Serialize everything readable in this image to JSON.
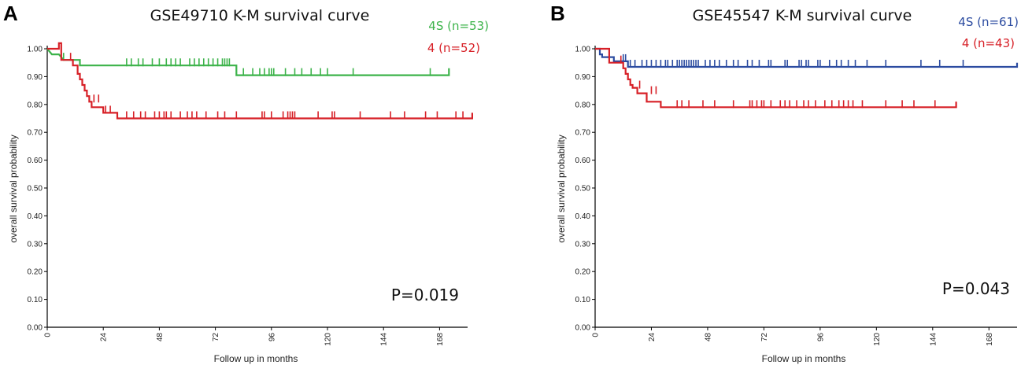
{
  "chart_data": [
    {
      "type": "line",
      "panel_label": "A",
      "title": "GSE49710 K-M survival curve",
      "xlabel": "Follow up in months",
      "ylabel": "overall survival probability",
      "xlim": [
        0,
        180
      ],
      "ylim": [
        0,
        1
      ],
      "x_ticks": [
        0,
        24,
        48,
        72,
        96,
        120,
        144,
        168
      ],
      "y_ticks": [
        0.0,
        0.1,
        0.2,
        0.3,
        0.4,
        0.5,
        0.6,
        0.7,
        0.8,
        0.9,
        1.0
      ],
      "p_value": "P=0.019",
      "series": [
        {
          "name": "4S (n=53)",
          "color": "#3cb34a",
          "steps": [
            [
              0,
              1.0
            ],
            [
              2,
              0.98
            ],
            [
              5,
              0.98
            ],
            [
              7,
              0.96
            ],
            [
              14,
              0.96
            ],
            [
              14,
              0.94
            ],
            [
              81,
              0.94
            ],
            [
              81,
              0.905
            ],
            [
              172,
              0.905
            ],
            [
              172,
              0.93
            ]
          ],
          "censor": [
            [
              7,
              0.96
            ],
            [
              34,
              0.94
            ],
            [
              36,
              0.94
            ],
            [
              39,
              0.94
            ],
            [
              41,
              0.94
            ],
            [
              45,
              0.94
            ],
            [
              48,
              0.94
            ],
            [
              51,
              0.94
            ],
            [
              53,
              0.94
            ],
            [
              55,
              0.94
            ],
            [
              57,
              0.94
            ],
            [
              61,
              0.94
            ],
            [
              63,
              0.94
            ],
            [
              65,
              0.94
            ],
            [
              67,
              0.94
            ],
            [
              69,
              0.94
            ],
            [
              71,
              0.94
            ],
            [
              73,
              0.94
            ],
            [
              75,
              0.94
            ],
            [
              76,
              0.94
            ],
            [
              77,
              0.94
            ],
            [
              78,
              0.94
            ],
            [
              84,
              0.905
            ],
            [
              88,
              0.905
            ],
            [
              91,
              0.905
            ],
            [
              93,
              0.905
            ],
            [
              95,
              0.905
            ],
            [
              96,
              0.905
            ],
            [
              97,
              0.905
            ],
            [
              102,
              0.905
            ],
            [
              106,
              0.905
            ],
            [
              109,
              0.905
            ],
            [
              113,
              0.905
            ],
            [
              117,
              0.905
            ],
            [
              120,
              0.905
            ],
            [
              131,
              0.905
            ],
            [
              164,
              0.905
            ]
          ]
        },
        {
          "name": "4 (n=52)",
          "color": "#d72027",
          "steps": [
            [
              0,
              1.0
            ],
            [
              5,
              1.0
            ],
            [
              5,
              1.02
            ],
            [
              6,
              1.02
            ],
            [
              6,
              0.96
            ],
            [
              11,
              0.96
            ],
            [
              11,
              0.94
            ],
            [
              13,
              0.94
            ],
            [
              13,
              0.91
            ],
            [
              14,
              0.91
            ],
            [
              14,
              0.89
            ],
            [
              15,
              0.89
            ],
            [
              15,
              0.87
            ],
            [
              16,
              0.87
            ],
            [
              16,
              0.85
            ],
            [
              17,
              0.85
            ],
            [
              17,
              0.83
            ],
            [
              18,
              0.83
            ],
            [
              18,
              0.81
            ],
            [
              19,
              0.81
            ],
            [
              19,
              0.79
            ],
            [
              22,
              0.79
            ],
            [
              22,
              0.79
            ],
            [
              24,
              0.79
            ],
            [
              24,
              0.77
            ],
            [
              30,
              0.77
            ],
            [
              30,
              0.75
            ],
            [
              182,
              0.75
            ],
            [
              182,
              0.77
            ]
          ],
          "censor": [
            [
              10,
              0.96
            ],
            [
              20,
              0.81
            ],
            [
              22,
              0.81
            ],
            [
              25,
              0.77
            ],
            [
              27,
              0.77
            ],
            [
              34,
              0.75
            ],
            [
              37,
              0.75
            ],
            [
              40,
              0.75
            ],
            [
              42,
              0.75
            ],
            [
              46,
              0.75
            ],
            [
              48,
              0.75
            ],
            [
              50,
              0.75
            ],
            [
              51,
              0.75
            ],
            [
              53,
              0.75
            ],
            [
              57,
              0.75
            ],
            [
              60,
              0.75
            ],
            [
              62,
              0.75
            ],
            [
              64,
              0.75
            ],
            [
              68,
              0.75
            ],
            [
              73,
              0.75
            ],
            [
              76,
              0.75
            ],
            [
              81,
              0.75
            ],
            [
              92,
              0.75
            ],
            [
              93,
              0.75
            ],
            [
              96,
              0.75
            ],
            [
              101,
              0.75
            ],
            [
              103,
              0.75
            ],
            [
              104,
              0.75
            ],
            [
              105,
              0.75
            ],
            [
              106,
              0.75
            ],
            [
              116,
              0.75
            ],
            [
              122,
              0.75
            ],
            [
              123,
              0.75
            ],
            [
              134,
              0.75
            ],
            [
              147,
              0.75
            ],
            [
              153,
              0.75
            ],
            [
              162,
              0.75
            ],
            [
              167,
              0.75
            ],
            [
              175,
              0.75
            ],
            [
              178,
              0.75
            ]
          ]
        }
      ]
    },
    {
      "type": "line",
      "panel_label": "B",
      "title": "GSE45547 K-M survival curve",
      "xlabel": "Follow up in months",
      "ylabel": "overall survival probability",
      "xlim": [
        0,
        180
      ],
      "ylim": [
        0,
        1
      ],
      "x_ticks": [
        0,
        24,
        48,
        72,
        96,
        120,
        144,
        168
      ],
      "y_ticks": [
        0.0,
        0.1,
        0.2,
        0.3,
        0.4,
        0.5,
        0.6,
        0.7,
        0.8,
        0.9,
        1.0
      ],
      "p_value": "P=0.043",
      "series": [
        {
          "name": "4S (n=61)",
          "color": "#2b4ba0",
          "steps": [
            [
              0,
              1.0
            ],
            [
              2,
              1.0
            ],
            [
              2,
              0.98
            ],
            [
              3,
              0.98
            ],
            [
              3,
              0.97
            ],
            [
              8,
              0.97
            ],
            [
              8,
              0.955
            ],
            [
              14,
              0.955
            ],
            [
              14,
              0.935
            ],
            [
              180,
              0.935
            ],
            [
              180,
              0.95
            ]
          ],
          "censor": [
            [
              12,
              0.955
            ],
            [
              13,
              0.955
            ],
            [
              15,
              0.935
            ],
            [
              17,
              0.935
            ],
            [
              20,
              0.935
            ],
            [
              22,
              0.935
            ],
            [
              24,
              0.935
            ],
            [
              26,
              0.935
            ],
            [
              28,
              0.935
            ],
            [
              30,
              0.935
            ],
            [
              31,
              0.935
            ],
            [
              33,
              0.935
            ],
            [
              35,
              0.935
            ],
            [
              36,
              0.935
            ],
            [
              37,
              0.935
            ],
            [
              38,
              0.935
            ],
            [
              39,
              0.935
            ],
            [
              40,
              0.935
            ],
            [
              41,
              0.935
            ],
            [
              42,
              0.935
            ],
            [
              43,
              0.935
            ],
            [
              44,
              0.935
            ],
            [
              47,
              0.935
            ],
            [
              49,
              0.935
            ],
            [
              51,
              0.935
            ],
            [
              53,
              0.935
            ],
            [
              56,
              0.935
            ],
            [
              59,
              0.935
            ],
            [
              61,
              0.935
            ],
            [
              65,
              0.935
            ],
            [
              67,
              0.935
            ],
            [
              70,
              0.935
            ],
            [
              74,
              0.935
            ],
            [
              75,
              0.935
            ],
            [
              81,
              0.935
            ],
            [
              82,
              0.935
            ],
            [
              87,
              0.935
            ],
            [
              88,
              0.935
            ],
            [
              90,
              0.935
            ],
            [
              91,
              0.935
            ],
            [
              95,
              0.935
            ],
            [
              96,
              0.935
            ],
            [
              100,
              0.935
            ],
            [
              103,
              0.935
            ],
            [
              105,
              0.935
            ],
            [
              108,
              0.935
            ],
            [
              111,
              0.935
            ],
            [
              116,
              0.935
            ],
            [
              124,
              0.935
            ],
            [
              139,
              0.935
            ],
            [
              147,
              0.935
            ],
            [
              157,
              0.935
            ]
          ]
        },
        {
          "name": "4 (n=43)",
          "color": "#d72027",
          "steps": [
            [
              0,
              1.0
            ],
            [
              6,
              1.0
            ],
            [
              6,
              0.95
            ],
            [
              12,
              0.95
            ],
            [
              12,
              0.93
            ],
            [
              13,
              0.93
            ],
            [
              13,
              0.91
            ],
            [
              14,
              0.91
            ],
            [
              14,
              0.89
            ],
            [
              15,
              0.89
            ],
            [
              15,
              0.87
            ],
            [
              16,
              0.87
            ],
            [
              16,
              0.86
            ],
            [
              18,
              0.86
            ],
            [
              18,
              0.84
            ],
            [
              22,
              0.84
            ],
            [
              22,
              0.81
            ],
            [
              28,
              0.81
            ],
            [
              28,
              0.79
            ],
            [
              154,
              0.79
            ],
            [
              154,
              0.81
            ]
          ],
          "censor": [
            [
              11,
              0.95
            ],
            [
              19,
              0.86
            ],
            [
              24,
              0.84
            ],
            [
              26,
              0.84
            ],
            [
              35,
              0.79
            ],
            [
              37,
              0.79
            ],
            [
              40,
              0.79
            ],
            [
              46,
              0.79
            ],
            [
              51,
              0.79
            ],
            [
              59,
              0.79
            ],
            [
              66,
              0.79
            ],
            [
              67,
              0.79
            ],
            [
              69,
              0.79
            ],
            [
              71,
              0.79
            ],
            [
              72,
              0.79
            ],
            [
              75,
              0.79
            ],
            [
              79,
              0.79
            ],
            [
              81,
              0.79
            ],
            [
              83,
              0.79
            ],
            [
              86,
              0.79
            ],
            [
              89,
              0.79
            ],
            [
              91,
              0.79
            ],
            [
              94,
              0.79
            ],
            [
              98,
              0.79
            ],
            [
              101,
              0.79
            ],
            [
              104,
              0.79
            ],
            [
              106,
              0.79
            ],
            [
              108,
              0.79
            ],
            [
              110,
              0.79
            ],
            [
              114,
              0.79
            ],
            [
              124,
              0.79
            ],
            [
              131,
              0.79
            ],
            [
              136,
              0.79
            ],
            [
              145,
              0.79
            ]
          ]
        }
      ]
    }
  ]
}
